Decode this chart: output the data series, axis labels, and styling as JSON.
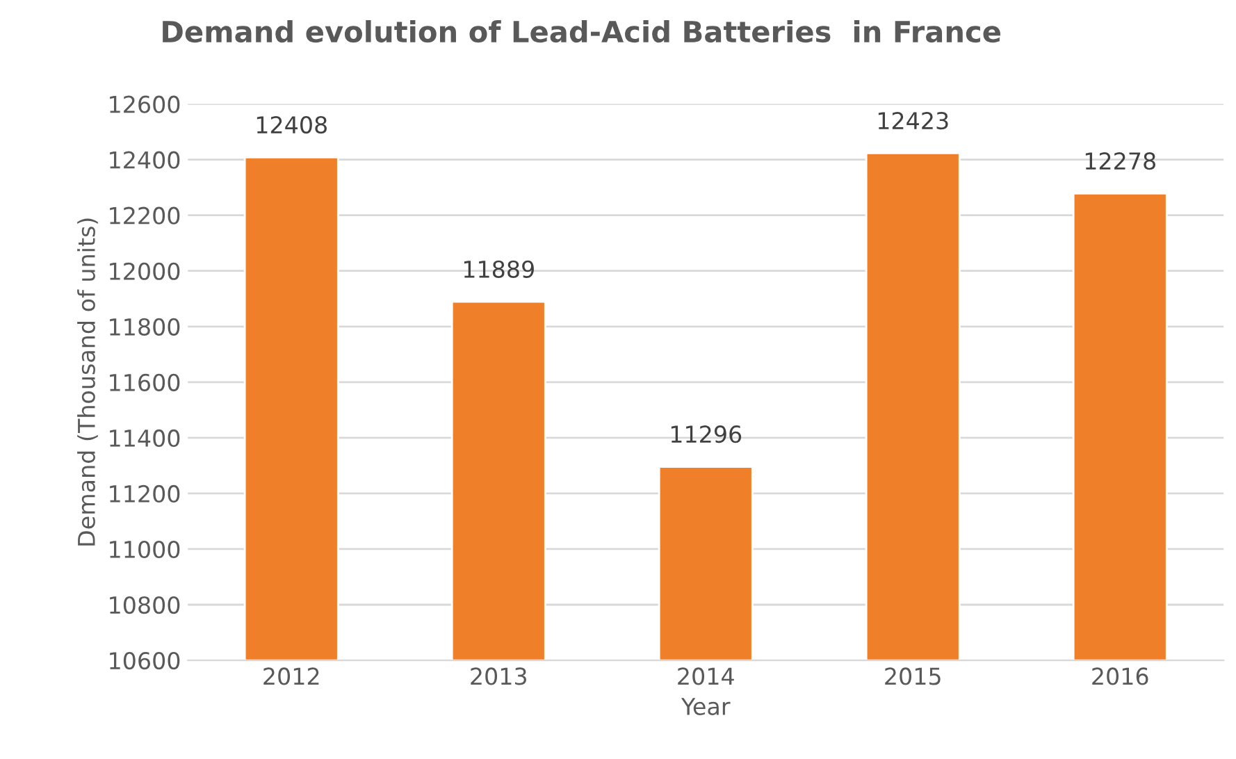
{
  "chart_data": {
    "type": "bar",
    "title": "Demand evolution of Lead-Acid Batteries  in France",
    "xlabel": "Year",
    "ylabel": "Demand (Thousand of units)",
    "categories": [
      "2012",
      "2013",
      "2014",
      "2015",
      "2016"
    ],
    "values": [
      12408,
      11889,
      11296,
      12423,
      12278
    ],
    "color": "#f07f2a",
    "ylim": [
      10600,
      12600
    ],
    "yticks": [
      10600,
      10800,
      11000,
      11200,
      11400,
      11600,
      11800,
      12000,
      12200,
      12400,
      12600
    ],
    "grid": "y",
    "data_labels": true
  }
}
